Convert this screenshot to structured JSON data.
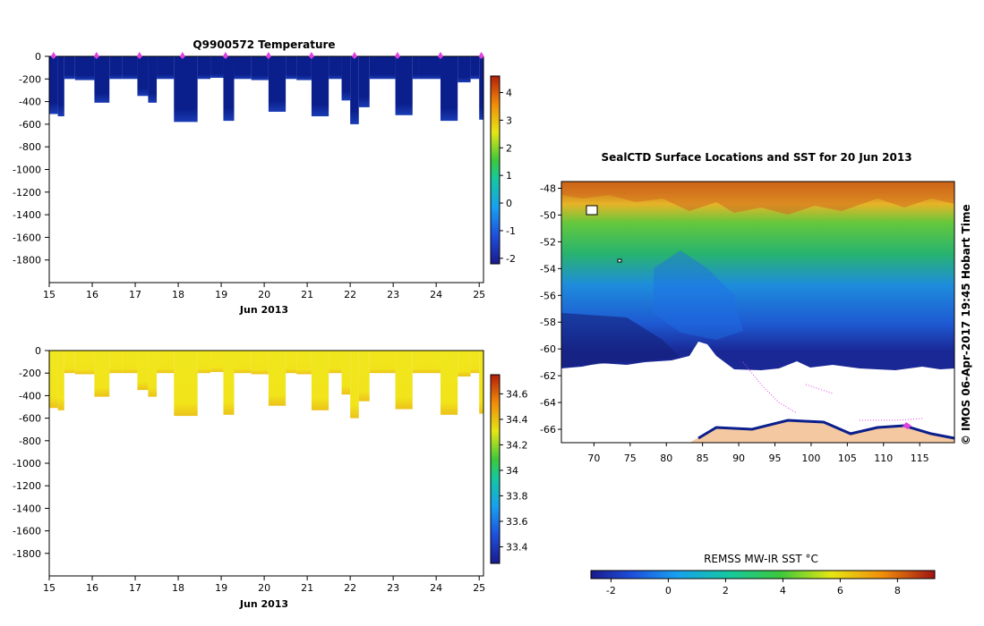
{
  "colors": {
    "temp_profile": "#0a1e8c",
    "temp_profile_bottom": "#1a3cb4",
    "sal_profile": "#f2e41a",
    "sal_profile_bottom": "#ecc61a",
    "marker": "#e040e0",
    "land": "#f4c8a0"
  },
  "chart_data": [
    {
      "type": "heatmap",
      "name": "temperature-section",
      "title": "Q9900572  Temperature",
      "xlabel": "Jun 2013",
      "ylabel": "",
      "xlim": [
        15,
        25.1
      ],
      "ylim": [
        -2000,
        0
      ],
      "x_ticks": [
        "15",
        "16",
        "17",
        "18",
        "19",
        "20",
        "21",
        "22",
        "23",
        "24",
        "25"
      ],
      "y_ticks": [
        "0",
        "-200",
        "-400",
        "-600",
        "-800",
        "-1000",
        "-1200",
        "-1400",
        "-1600",
        "-1800"
      ],
      "colorbar": {
        "min": -2.2,
        "max": 4.6,
        "ticks": [
          "-2",
          "-1",
          "0",
          "1",
          "2",
          "3",
          "4"
        ]
      },
      "profile_markers_days": [
        15.1,
        16.1,
        17.1,
        18.1,
        19.1,
        20.1,
        21.1,
        22.1,
        23.1,
        24.1,
        25.05
      ]
    },
    {
      "type": "heatmap",
      "name": "salinity-section",
      "title": "",
      "xlabel": "Jun 2013",
      "ylabel": "",
      "xlim": [
        15,
        25.1
      ],
      "ylim": [
        -2000,
        0
      ],
      "x_ticks": [
        "15",
        "16",
        "17",
        "18",
        "19",
        "20",
        "21",
        "22",
        "23",
        "24",
        "25"
      ],
      "y_ticks": [
        "0",
        "-200",
        "-400",
        "-600",
        "-800",
        "-1000",
        "-1200",
        "-1400",
        "-1600",
        "-1800"
      ],
      "colorbar": {
        "min": 33.27,
        "max": 34.75,
        "ticks": [
          "33.4",
          "33.6",
          "33.8",
          "34",
          "34.2",
          "34.4",
          "34.6"
        ]
      }
    },
    {
      "type": "heatmap",
      "name": "sst-map",
      "title": "SealCTD Surface Locations and SST for 20 Jun 2013",
      "xlabel": "",
      "ylabel": "",
      "xlim": [
        65.5,
        119.8
      ],
      "ylim": [
        -67,
        -47.5
      ],
      "x_ticks": [
        "70",
        "75",
        "80",
        "85",
        "90",
        "95",
        "100",
        "105",
        "110",
        "115"
      ],
      "y_ticks": [
        "-48",
        "-50",
        "-52",
        "-54",
        "-56",
        "-58",
        "-60",
        "-62",
        "-64",
        "-66"
      ],
      "colorbar": {
        "label": "REMSS MW-IR SST °C",
        "min": -2.7,
        "max": 9.3,
        "ticks": [
          "-2",
          "0",
          "2",
          "4",
          "6",
          "8"
        ]
      }
    }
  ],
  "profiles": [
    {
      "x0": 15.0,
      "x1": 15.2,
      "depth": -510
    },
    {
      "x0": 15.2,
      "x1": 15.35,
      "depth": -530
    },
    {
      "x0": 15.35,
      "x1": 15.6,
      "depth": -200
    },
    {
      "x0": 15.6,
      "x1": 16.05,
      "depth": -210
    },
    {
      "x0": 16.05,
      "x1": 16.4,
      "depth": -410
    },
    {
      "x0": 16.4,
      "x1": 16.7,
      "depth": -200
    },
    {
      "x0": 16.7,
      "x1": 17.05,
      "depth": -200
    },
    {
      "x0": 17.05,
      "x1": 17.3,
      "depth": -350
    },
    {
      "x0": 17.3,
      "x1": 17.5,
      "depth": -410
    },
    {
      "x0": 17.5,
      "x1": 17.9,
      "depth": -200
    },
    {
      "x0": 17.9,
      "x1": 18.45,
      "depth": -580
    },
    {
      "x0": 18.45,
      "x1": 18.75,
      "depth": -200
    },
    {
      "x0": 18.75,
      "x1": 19.05,
      "depth": -190
    },
    {
      "x0": 19.05,
      "x1": 19.3,
      "depth": -570
    },
    {
      "x0": 19.3,
      "x1": 19.7,
      "depth": -200
    },
    {
      "x0": 19.7,
      "x1": 20.1,
      "depth": -210
    },
    {
      "x0": 20.1,
      "x1": 20.5,
      "depth": -490
    },
    {
      "x0": 20.5,
      "x1": 20.75,
      "depth": -200
    },
    {
      "x0": 20.75,
      "x1": 21.1,
      "depth": -210
    },
    {
      "x0": 21.1,
      "x1": 21.5,
      "depth": -530
    },
    {
      "x0": 21.5,
      "x1": 21.8,
      "depth": -200
    },
    {
      "x0": 21.8,
      "x1": 22.0,
      "depth": -390
    },
    {
      "x0": 22.0,
      "x1": 22.2,
      "depth": -600
    },
    {
      "x0": 22.2,
      "x1": 22.45,
      "depth": -450
    },
    {
      "x0": 22.45,
      "x1": 23.05,
      "depth": -200
    },
    {
      "x0": 23.05,
      "x1": 23.45,
      "depth": -520
    },
    {
      "x0": 23.45,
      "x1": 23.6,
      "depth": -200
    },
    {
      "x0": 23.6,
      "x1": 24.1,
      "depth": -200
    },
    {
      "x0": 24.1,
      "x1": 24.5,
      "depth": -570
    },
    {
      "x0": 24.5,
      "x1": 24.8,
      "depth": -230
    },
    {
      "x0": 24.8,
      "x1": 25.0,
      "depth": -200
    },
    {
      "x0": 25.0,
      "x1": 25.1,
      "depth": -560
    }
  ],
  "credit": "IMOS 06-Apr-2017 19:45 Hobart Time",
  "copyright_symbol": "©"
}
